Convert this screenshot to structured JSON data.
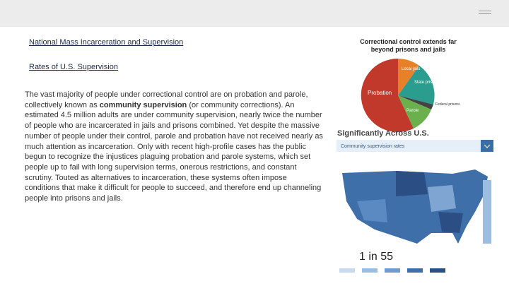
{
  "header": {
    "links": [
      "National Mass Incarceration and Supervision",
      "Rates of U.S. Supervision"
    ]
  },
  "body": {
    "parts": [
      "The vast majority of people under correctional control are on probation and parole, collectively known as ",
      "community supervision",
      " (or community corrections). An estimated 4.5 million adults are under community supervision, nearly twice the number of people who are incarcerated in jails and prisons combined. Yet despite the massive number of people under their control, parole and probation have not received nearly as much attention as incarceration. Only with recent high-profile cases has the public begun to recognize the injustices plaguing probation and parole systems, which set people up to fail with long supervision terms, onerous restrictions, and constant scrutiny. Touted as alternatives to incarceration, these systems often impose conditions that make it difficult for people to succeed, and therefore end up channeling people into prisons and jails."
    ]
  },
  "pie_image": {
    "title": "Correctional control extends far beyond prisons and jails",
    "labels": [
      "Local jails",
      "State prisons",
      "Probation",
      "Parole",
      "Federal prisons"
    ]
  },
  "map_image": {
    "title": "Significantly Across U.S.",
    "dropdown": "Community supervision rates",
    "headline": "1 in 55"
  }
}
